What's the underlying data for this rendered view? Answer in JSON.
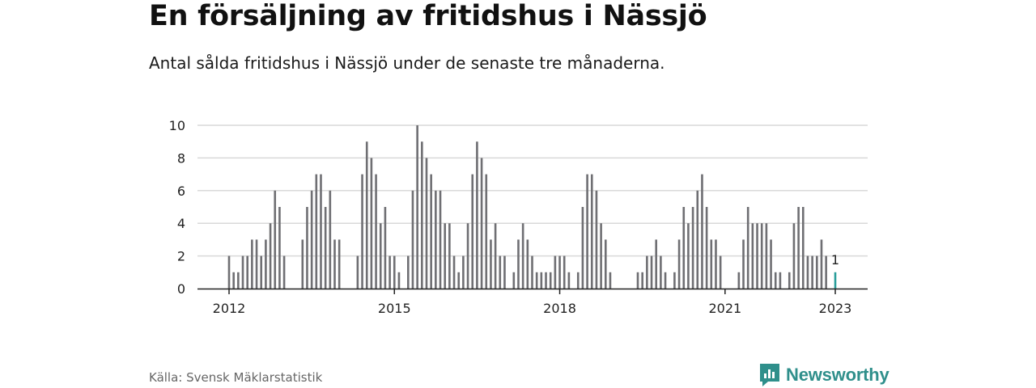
{
  "title": "En försäljning av fritidshus i Nässjö",
  "subtitle": "Antal sålda fritidshus i Nässjö under de senaste tre månaderna.",
  "source": "Källa: Svensk Mäklarstatistik",
  "brand": {
    "name": "Newsworthy",
    "color": "#2f8f8b",
    "icon": "newsworthy-logo-icon"
  },
  "colors": {
    "bar": "#6f6f73",
    "highlight": "#2a9d9a",
    "grid": "#d9d9d9",
    "axis": "#222222"
  },
  "chart_data": {
    "type": "bar",
    "title": "",
    "xlabel": "",
    "ylabel": "",
    "ylim": [
      0,
      10
    ],
    "yticks": [
      0,
      2,
      4,
      6,
      8,
      10
    ],
    "grid": true,
    "x_start": "2012-01",
    "x_end": "2023-01",
    "xticks": [
      {
        "label": "2012",
        "date": "2012-01"
      },
      {
        "label": "2015",
        "date": "2015-01"
      },
      {
        "label": "2018",
        "date": "2018-01"
      },
      {
        "label": "2021",
        "date": "2021-01"
      },
      {
        "label": "2023",
        "date": "2023-01"
      }
    ],
    "x": [
      "2012-01",
      "2012-02",
      "2012-03",
      "2012-04",
      "2012-05",
      "2012-06",
      "2012-07",
      "2012-08",
      "2012-09",
      "2012-10",
      "2012-11",
      "2012-12",
      "2013-01",
      "2013-02",
      "2013-03",
      "2013-04",
      "2013-05",
      "2013-06",
      "2013-07",
      "2013-08",
      "2013-09",
      "2013-10",
      "2013-11",
      "2013-12",
      "2014-01",
      "2014-02",
      "2014-03",
      "2014-04",
      "2014-05",
      "2014-06",
      "2014-07",
      "2014-08",
      "2014-09",
      "2014-10",
      "2014-11",
      "2014-12",
      "2015-01",
      "2015-02",
      "2015-03",
      "2015-04",
      "2015-05",
      "2015-06",
      "2015-07",
      "2015-08",
      "2015-09",
      "2015-10",
      "2015-11",
      "2015-12",
      "2016-01",
      "2016-02",
      "2016-03",
      "2016-04",
      "2016-05",
      "2016-06",
      "2016-07",
      "2016-08",
      "2016-09",
      "2016-10",
      "2016-11",
      "2016-12",
      "2017-01",
      "2017-02",
      "2017-03",
      "2017-04",
      "2017-05",
      "2017-06",
      "2017-07",
      "2017-08",
      "2017-09",
      "2017-10",
      "2017-11",
      "2017-12",
      "2018-01",
      "2018-02",
      "2018-03",
      "2018-04",
      "2018-05",
      "2018-06",
      "2018-07",
      "2018-08",
      "2018-09",
      "2018-10",
      "2018-11",
      "2018-12",
      "2019-01",
      "2019-02",
      "2019-03",
      "2019-04",
      "2019-05",
      "2019-06",
      "2019-07",
      "2019-08",
      "2019-09",
      "2019-10",
      "2019-11",
      "2019-12",
      "2020-01",
      "2020-02",
      "2020-03",
      "2020-04",
      "2020-05",
      "2020-06",
      "2020-07",
      "2020-08",
      "2020-09",
      "2020-10",
      "2020-11",
      "2020-12",
      "2021-01",
      "2021-02",
      "2021-03",
      "2021-04",
      "2021-05",
      "2021-06",
      "2021-07",
      "2021-08",
      "2021-09",
      "2021-10",
      "2021-11",
      "2021-12",
      "2022-01",
      "2022-02",
      "2022-03",
      "2022-04",
      "2022-05",
      "2022-06",
      "2022-07",
      "2022-08",
      "2022-09",
      "2022-10",
      "2022-11",
      "2022-12",
      "2023-01"
    ],
    "values": [
      2,
      1,
      1,
      2,
      2,
      3,
      3,
      2,
      3,
      4,
      6,
      5,
      2,
      0,
      0,
      0,
      3,
      5,
      6,
      7,
      7,
      5,
      6,
      3,
      3,
      0,
      0,
      0,
      2,
      7,
      9,
      8,
      7,
      4,
      5,
      2,
      2,
      1,
      0,
      2,
      6,
      10,
      9,
      8,
      7,
      6,
      6,
      4,
      4,
      2,
      1,
      2,
      4,
      7,
      9,
      8,
      7,
      3,
      4,
      2,
      2,
      0,
      1,
      3,
      4,
      3,
      2,
      1,
      1,
      1,
      1,
      2,
      2,
      2,
      1,
      0,
      1,
      5,
      7,
      7,
      6,
      4,
      3,
      1,
      0,
      0,
      0,
      0,
      0,
      1,
      1,
      2,
      2,
      3,
      2,
      1,
      0,
      1,
      3,
      5,
      4,
      5,
      6,
      7,
      5,
      3,
      3,
      2,
      0,
      0,
      0,
      1,
      3,
      5,
      4,
      4,
      4,
      4,
      3,
      1,
      1,
      0,
      1,
      4,
      5,
      5,
      2,
      2,
      2,
      3,
      2,
      0,
      1
    ],
    "highlight_last": true,
    "data_labels": [
      {
        "date": "2023-01",
        "text": "1"
      }
    ]
  }
}
